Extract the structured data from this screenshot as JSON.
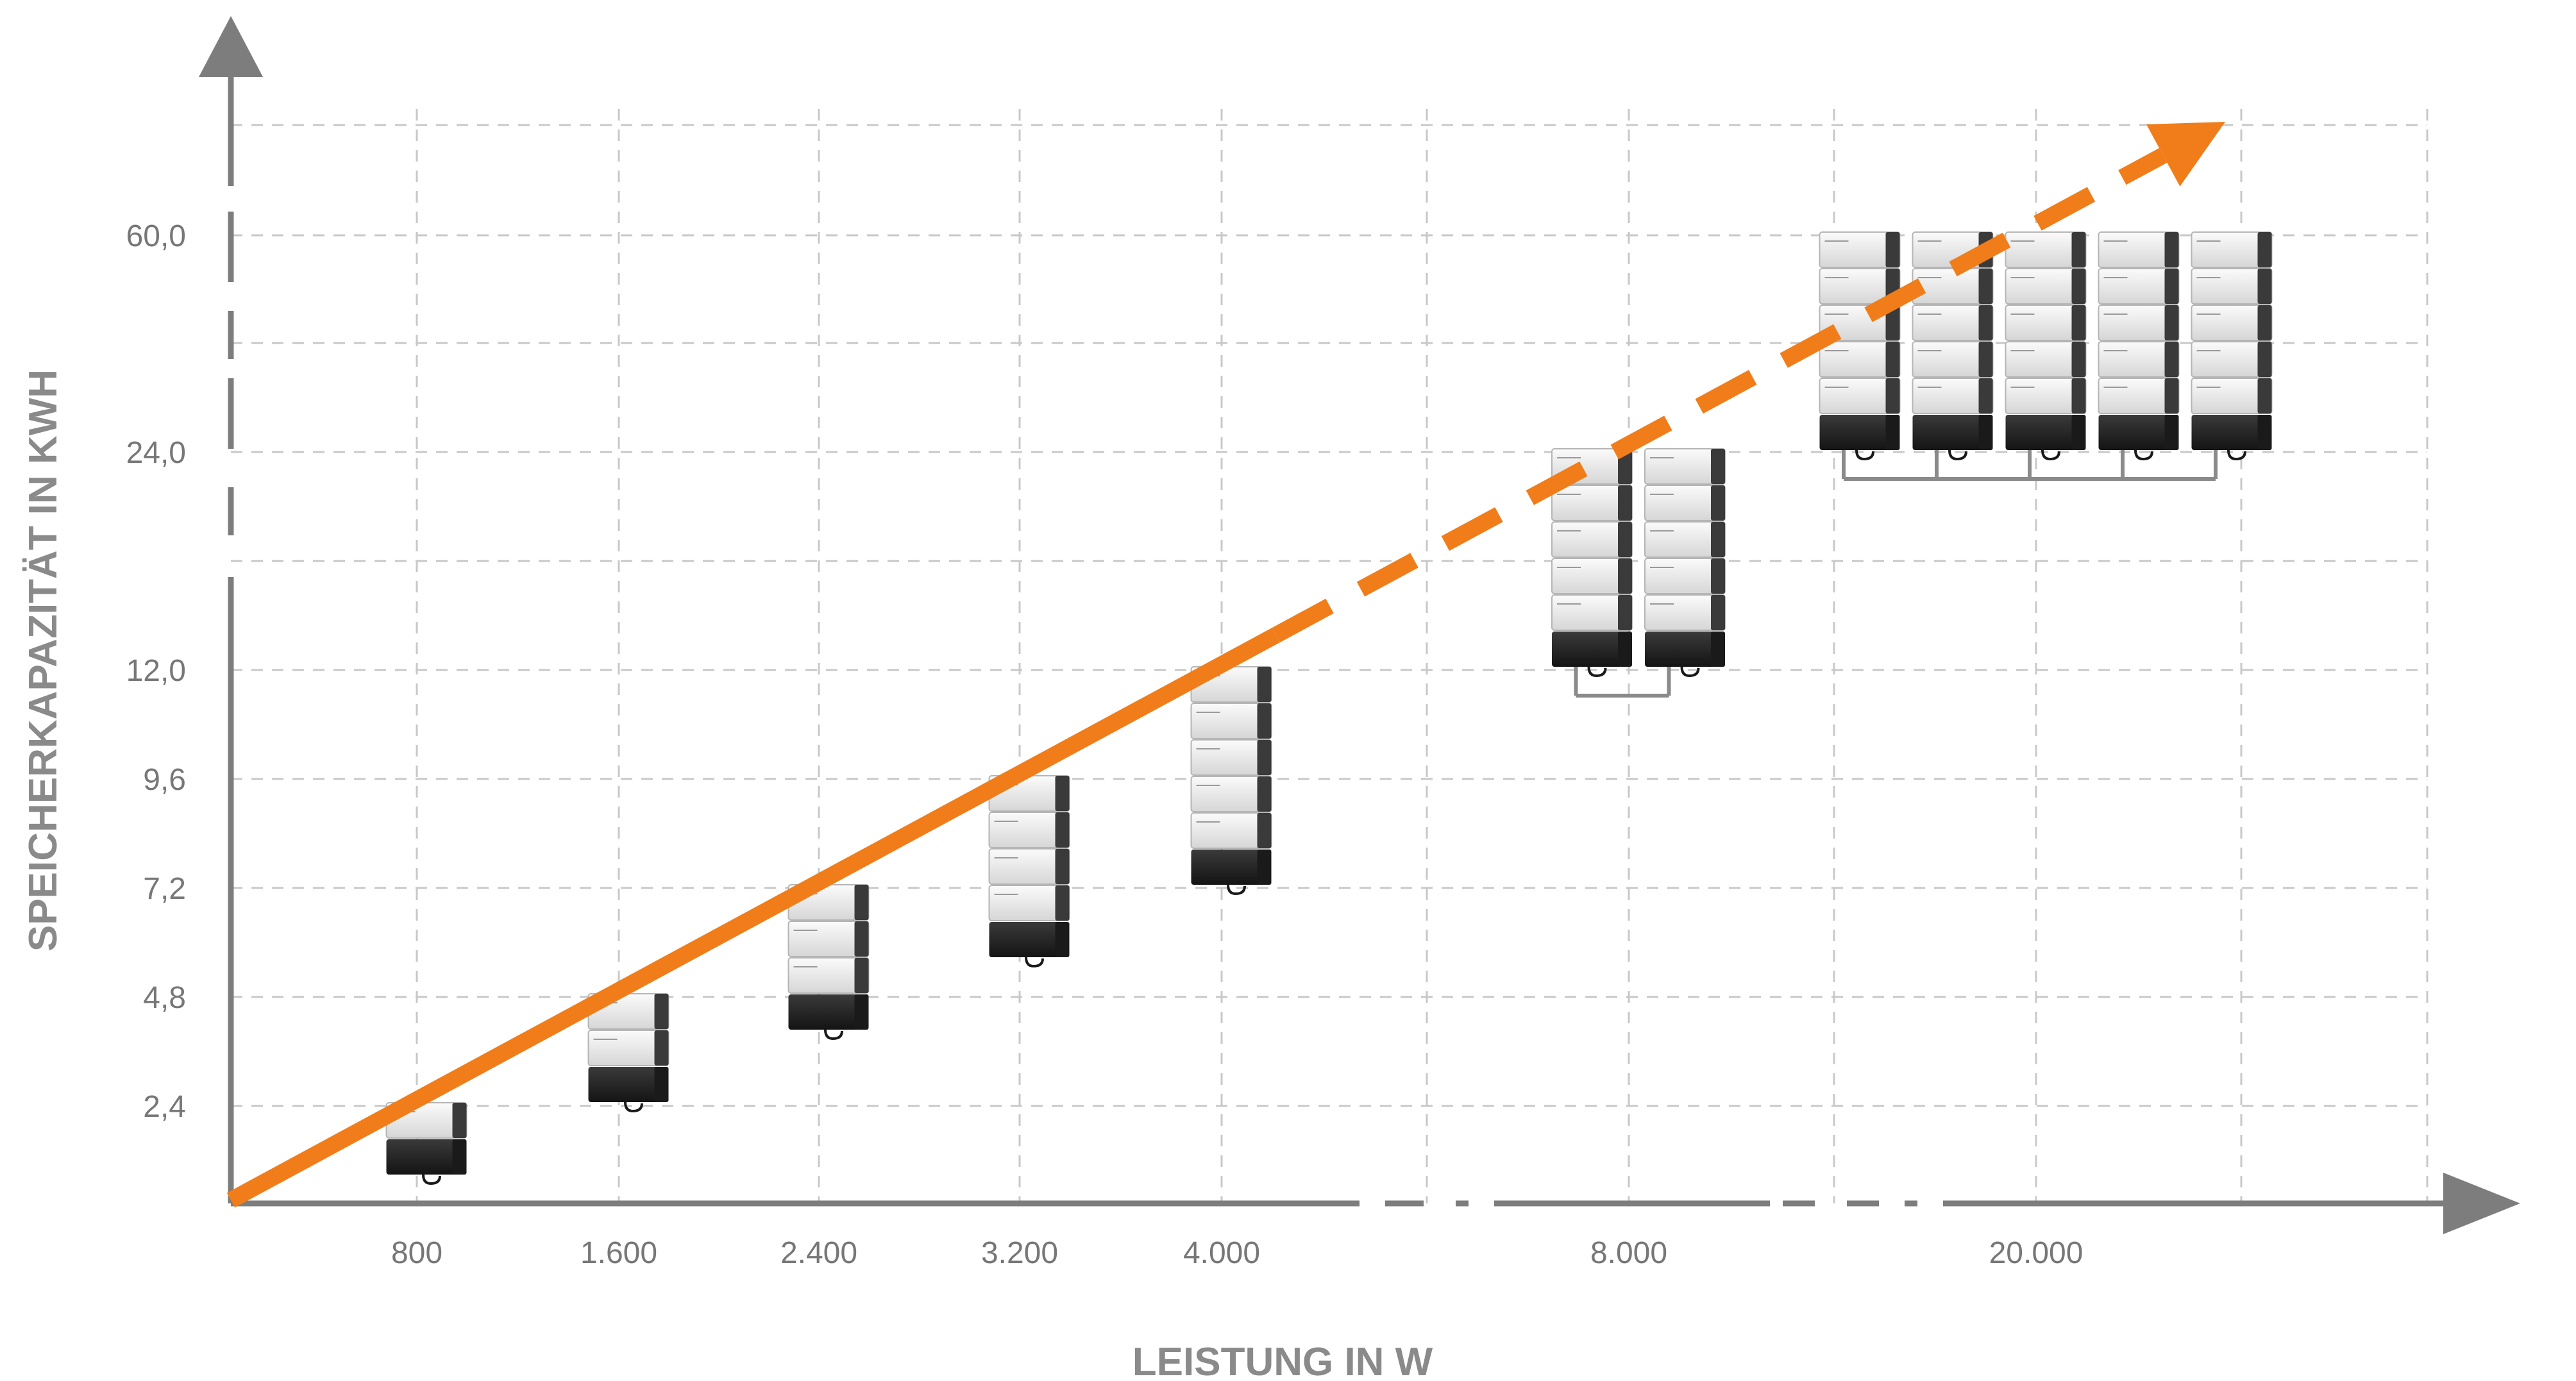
{
  "chart_data": {
    "type": "line",
    "title": "",
    "xlabel": "LEISTUNG IN W",
    "ylabel": "SPEICHERKAPAZITÄT  IN KWH",
    "x_categories": [
      "800",
      "1.600",
      "2.400",
      "3.200",
      "4.000",
      "8.000",
      "20.000"
    ],
    "y_ticks": [
      "2,4",
      "4,8",
      "7,2",
      "9,6",
      "12,0",
      "24,0",
      "60,0"
    ],
    "axis_breaks": {
      "x": [
        "4.000–8.000",
        "8.000–20.000"
      ],
      "y": [
        "12,0–24,0",
        "24,0–60,0"
      ]
    },
    "grid": true,
    "series": [
      {
        "type": "trend-arrow",
        "points": [
          {
            "x": "0",
            "y": "0"
          },
          {
            "x": "4.000",
            "y": "12,0"
          },
          {
            "x": "8.000",
            "y": "24,0"
          },
          {
            "x": "20.000",
            "y": "60,0"
          }
        ]
      }
    ],
    "battery_configurations": [
      {
        "x": "800",
        "y": "2,4",
        "stacks": 1,
        "modules_per_stack": 1
      },
      {
        "x": "1.600",
        "y": "4,8",
        "stacks": 1,
        "modules_per_stack": 2
      },
      {
        "x": "2.400",
        "y": "7,2",
        "stacks": 1,
        "modules_per_stack": 3
      },
      {
        "x": "3.200",
        "y": "9,6",
        "stacks": 1,
        "modules_per_stack": 4
      },
      {
        "x": "4.000",
        "y": "12,0",
        "stacks": 1,
        "modules_per_stack": 5
      },
      {
        "x": "8.000",
        "y": "24,0",
        "stacks": 2,
        "modules_per_stack": 5
      },
      {
        "x": "20.000",
        "y": "60,0",
        "stacks": 5,
        "modules_per_stack": 5
      }
    ],
    "colors": {
      "trend": "#f07d1a",
      "axis": "#7d7d7d",
      "grid": "#c8c8c8",
      "module_light": "#e8e8e8",
      "module_dark": "#2a2a2a",
      "connector": "#8a8a8a"
    }
  }
}
